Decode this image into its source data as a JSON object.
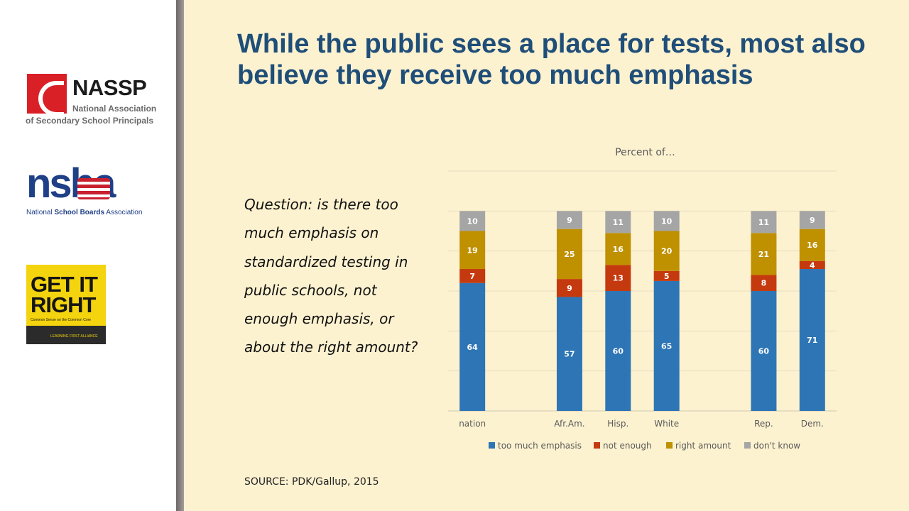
{
  "logos": {
    "nassp": {
      "name": "NASSP",
      "line1": "National Association",
      "line2": "of Secondary School Principals"
    },
    "nsba": {
      "name": "nsba",
      "sub_pre": "National ",
      "sub_bold": "School Boards",
      "sub_post": " Association"
    },
    "getit": {
      "line1": "GET IT",
      "line2": "RIGHT",
      "sub": "Common Sense on the Common Core",
      "band": "LEARNING FIRST ALLIANCE"
    }
  },
  "title": "While the public sees a place for tests, most also believe they receive too much emphasis",
  "question": "Question: is there too much emphasis on standardized testing in public schools, not enough emphasis, or about the right amount?",
  "source": "SOURCE: PDK/Gallup, 2015",
  "colors": {
    "title": "#1f4e79",
    "too_much": "#2e75b6",
    "not_enough": "#c5390f",
    "right_amount": "#bf9000",
    "dont_know": "#a5a5a5"
  },
  "chart_data": {
    "type": "bar",
    "stacked": true,
    "title": "Percent of…",
    "xlabel": "",
    "ylabel": "",
    "ylim": [
      0,
      120
    ],
    "grid": true,
    "legend": "bottom",
    "categories": [
      "nation",
      "",
      "Afr.Am.",
      "Hisp.",
      "White",
      "",
      "Rep.",
      "Dem."
    ],
    "series": [
      {
        "name": "too much emphasis",
        "color": "#2e75b6",
        "values": [
          64,
          null,
          57,
          60,
          65,
          null,
          60,
          71
        ]
      },
      {
        "name": "not enough",
        "color": "#c5390f",
        "values": [
          7,
          null,
          9,
          13,
          5,
          null,
          8,
          4
        ]
      },
      {
        "name": "right amount",
        "color": "#bf9000",
        "values": [
          19,
          null,
          25,
          16,
          20,
          null,
          21,
          16
        ]
      },
      {
        "name": "don't know",
        "color": "#a5a5a5",
        "values": [
          10,
          null,
          9,
          11,
          10,
          null,
          11,
          9
        ]
      }
    ]
  }
}
